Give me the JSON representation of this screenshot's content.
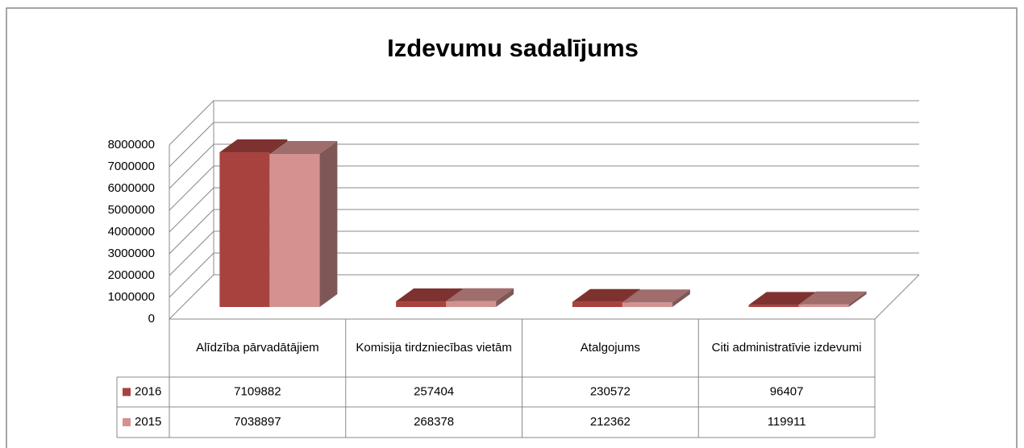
{
  "chart_data": {
    "type": "bar3d",
    "title": "Izdevumu sadalījums",
    "categories": [
      "Alīdzība pārvadātājiem",
      "Komisija tirdzniecības vietām",
      "Atalgojums",
      "Citi administratīvie izdevumi"
    ],
    "series": [
      {
        "name": "2016",
        "color": "#a8423f",
        "values": [
          7109882,
          257404,
          230572,
          96407
        ]
      },
      {
        "name": "2015",
        "color": "#d49190",
        "values": [
          7038897,
          268378,
          212362,
          119911
        ]
      }
    ],
    "ylim": [
      0,
      8000000
    ],
    "yticks": [
      0,
      1000000,
      2000000,
      3000000,
      4000000,
      5000000,
      6000000,
      7000000,
      8000000
    ],
    "grid": true,
    "data_table": true
  }
}
